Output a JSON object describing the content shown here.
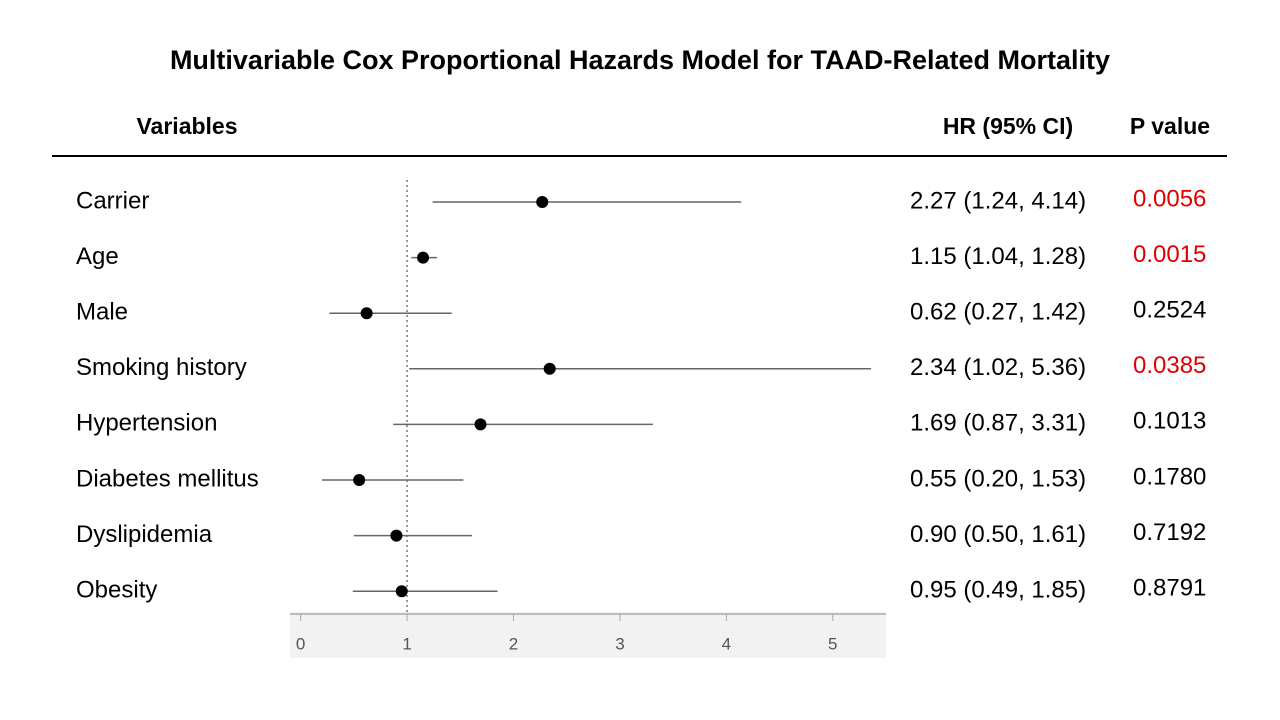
{
  "chart_data": {
    "type": "forest",
    "title": "Multivariable Cox Proportional Hazards Model for TAAD-Related Mortality",
    "column_headers": [
      "Variables",
      "HR (95% CI)",
      "P value"
    ],
    "categories": [
      "Carrier",
      "Age",
      "Male",
      "Smoking history",
      "Hypertension",
      "Diabetes mellitus",
      "Dyslipidemia",
      "Obesity"
    ],
    "values": [
      2.27,
      1.15,
      0.62,
      2.34,
      1.69,
      0.55,
      0.9,
      0.95
    ],
    "lower": [
      1.24,
      1.04,
      0.27,
      1.02,
      0.87,
      0.2,
      0.5,
      0.49
    ],
    "upper": [
      4.14,
      1.28,
      1.42,
      5.36,
      3.31,
      1.53,
      1.61,
      1.85
    ],
    "value_labels": [
      "2.27 (1.24, 4.14)",
      "1.15 (1.04, 1.28)",
      "0.62 (0.27, 1.42)",
      "2.34 (1.02, 5.36)",
      "1.69 (0.87, 3.31)",
      "0.55 (0.20, 1.53)",
      "0.90 (0.50, 1.61)",
      "0.95 (0.49, 1.85)"
    ],
    "p_values": [
      0.0056,
      0.0015,
      0.2524,
      0.0385,
      0.1013,
      0.178,
      0.7192,
      0.8791
    ],
    "p_value_labels": [
      "0.0056",
      "0.0015",
      "0.2524",
      "0.0385",
      "0.1013",
      "0.1780",
      "0.7192",
      "0.8791"
    ],
    "p_value_colors": [
      "#e00000",
      "#e00000",
      "#000000",
      "#e00000",
      "#000000",
      "#000000",
      "#000000",
      "#000000"
    ],
    "color": "#000000",
    "ci_color": "#666666",
    "xlim": [
      -0.1,
      5.5
    ],
    "xticks": [
      0,
      1,
      2,
      3,
      4,
      5
    ],
    "reference_line": 1
  }
}
